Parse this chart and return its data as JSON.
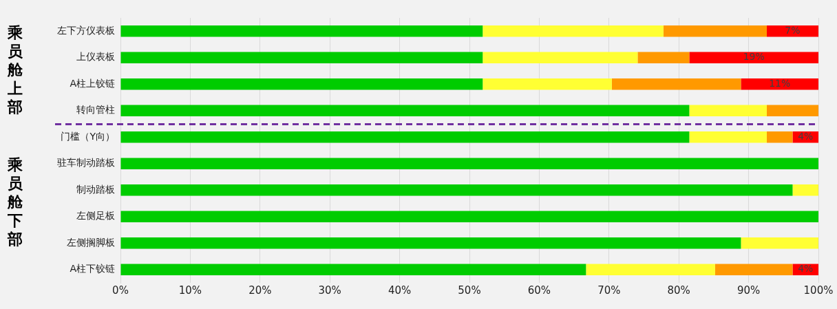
{
  "chart_data": {
    "type": "bar",
    "orientation": "horizontal",
    "stacked": true,
    "categories": [
      "左下方仪表板",
      "上仪表板",
      "A柱上铰链",
      "转向管柱",
      "门槛（Y向）",
      "驻车制动踏板",
      "制动踏板",
      "左侧足板",
      "左侧搁脚板",
      "A柱下铰链"
    ],
    "series": [
      {
        "color": "#00cc00",
        "values": [
          51.9,
          51.9,
          51.9,
          81.5,
          81.5,
          100,
          96.3,
          100,
          88.9,
          66.7
        ]
      },
      {
        "color": "#ffff33",
        "values": [
          25.9,
          22.2,
          18.5,
          11.1,
          11.1,
          0,
          3.7,
          0,
          11.1,
          18.5
        ]
      },
      {
        "color": "#ff9900",
        "values": [
          14.8,
          7.4,
          18.5,
          7.4,
          3.7,
          0,
          0,
          0,
          0,
          11.1
        ]
      },
      {
        "color": "#ff0000",
        "values": [
          7.4,
          18.5,
          11.1,
          0,
          3.7,
          0,
          0,
          0,
          0,
          3.7
        ],
        "value_labels": [
          "7%",
          "19%",
          "11%",
          null,
          "4%",
          null,
          null,
          null,
          null,
          "4%"
        ]
      }
    ],
    "xlim": [
      0,
      100
    ],
    "xticks": [
      {
        "value": 0,
        "label": "0%"
      },
      {
        "value": 10,
        "label": "10%"
      },
      {
        "value": 20,
        "label": "20%"
      },
      {
        "value": 30,
        "label": "30%"
      },
      {
        "value": 40,
        "label": "40%"
      },
      {
        "value": 50,
        "label": "50%"
      },
      {
        "value": 60,
        "label": "60%"
      },
      {
        "value": 70,
        "label": "70%"
      },
      {
        "value": 80,
        "label": "80%"
      },
      {
        "value": 90,
        "label": "90%"
      },
      {
        "value": 100,
        "label": "100%"
      }
    ],
    "grid": "x",
    "legend": false,
    "annotations": [
      "乘员舱上部",
      "乘员舱下部"
    ]
  }
}
